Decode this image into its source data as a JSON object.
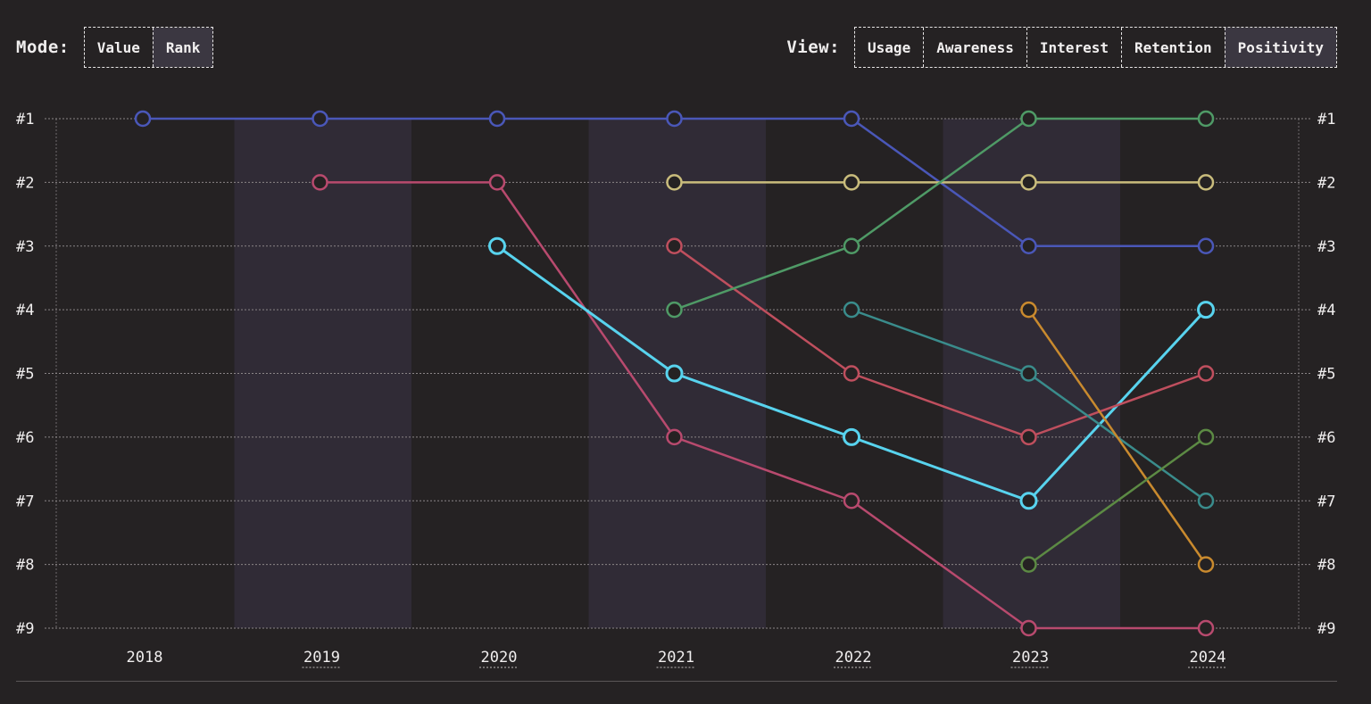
{
  "controls": {
    "mode_label": "Mode:",
    "mode_options": [
      "Value",
      "Rank"
    ],
    "mode_selected": "Rank",
    "view_label": "View:",
    "view_options": [
      "Usage",
      "Awareness",
      "Interest",
      "Retention",
      "Positivity"
    ],
    "view_selected": "Positivity"
  },
  "chart_data": {
    "type": "line",
    "title": "",
    "xlabel": "",
    "ylabel": "",
    "x": [
      "2018",
      "2019",
      "2020",
      "2021",
      "2022",
      "2023",
      "2024"
    ],
    "x_underlined": [
      "2019",
      "2020",
      "2021",
      "2022",
      "2023",
      "2024"
    ],
    "y_ticks": [
      "#1",
      "#2",
      "#3",
      "#4",
      "#5",
      "#6",
      "#7",
      "#8",
      "#9"
    ],
    "ylim": [
      1,
      9
    ],
    "y_inverted": true,
    "grid": true,
    "shaded_columns": [
      "2019",
      "2021",
      "2023"
    ],
    "series": [
      {
        "color": "#4a57b8",
        "values": [
          1,
          1,
          1,
          1,
          1,
          3,
          3
        ]
      },
      {
        "color": "#b84a6e",
        "values": [
          null,
          2,
          2,
          6,
          7,
          9,
          9
        ]
      },
      {
        "color": "#58d3ee",
        "values": [
          null,
          null,
          3,
          5,
          6,
          7,
          4
        ],
        "highlight": true
      },
      {
        "color": "#c9bc7c",
        "values": [
          null,
          null,
          null,
          2,
          2,
          2,
          2
        ]
      },
      {
        "color": "#bf4f5e",
        "values": [
          null,
          null,
          null,
          3,
          5,
          6,
          5
        ]
      },
      {
        "color": "#4f9a66",
        "values": [
          null,
          null,
          null,
          4,
          3,
          1,
          1
        ]
      },
      {
        "color": "#3a8c8c",
        "values": [
          null,
          null,
          null,
          null,
          4,
          5,
          7
        ]
      },
      {
        "color": "#c98a2e",
        "values": [
          null,
          null,
          null,
          null,
          null,
          4,
          8
        ]
      },
      {
        "color": "#5c8a44",
        "values": [
          null,
          null,
          null,
          null,
          null,
          8,
          6
        ]
      }
    ]
  }
}
